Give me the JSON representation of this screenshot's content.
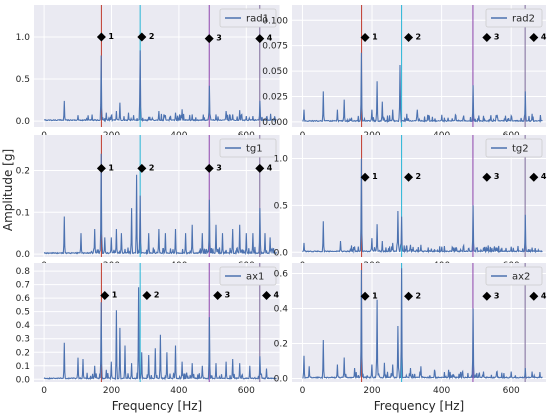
{
  "figure": {
    "ylabel": "Amplitude [g]",
    "xlabel": "Frequency [Hz]"
  },
  "colors": {
    "panel_bg": "#eaeaf2",
    "grid": "#ffffff",
    "signal": "#4c72b0",
    "marker": "#000000",
    "line1": "#c0392b",
    "line2": "#26b5d6",
    "line3": "#8e44ad",
    "line4": "#7d6a9a"
  },
  "chart_data": [
    {
      "type": "line",
      "legend": "rad1",
      "legend_placement": "top-right",
      "xlim": [
        -30,
        700
      ],
      "ylim": [
        -0.07,
        1.38
      ],
      "xticks": [
        0,
        200,
        400,
        600,
        700
      ],
      "xtick_labels": [
        "0",
        "200",
        "400",
        "600",
        ""
      ],
      "yticks": [
        0,
        0.5,
        1.0
      ],
      "ytick_labels": [
        "0.0",
        "0.5",
        "1.0"
      ],
      "xlabel": "",
      "markers": [
        {
          "label": "1",
          "x": 170,
          "y": 1.0
        },
        {
          "label": "2",
          "x": 290,
          "y": 1.0
        },
        {
          "label": "3",
          "x": 490,
          "y": 0.98
        },
        {
          "label": "4",
          "x": 640,
          "y": 0.98
        }
      ],
      "peaks": [
        [
          60,
          0.24
        ],
        [
          100,
          0.07
        ],
        [
          170,
          0.78
        ],
        [
          185,
          0.1
        ],
        [
          200,
          0.05
        ],
        [
          215,
          0.12
        ],
        [
          225,
          0.22
        ],
        [
          250,
          0.1
        ],
        [
          265,
          0.07
        ],
        [
          285,
          0.84
        ],
        [
          310,
          0.05
        ],
        [
          340,
          0.12
        ],
        [
          360,
          0.07
        ],
        [
          390,
          0.1
        ],
        [
          410,
          0.14
        ],
        [
          440,
          0.08
        ],
        [
          490,
          0.42
        ],
        [
          510,
          0.08
        ],
        [
          540,
          0.12
        ],
        [
          560,
          0.08
        ],
        [
          580,
          0.13
        ],
        [
          600,
          0.06
        ],
        [
          620,
          0.06
        ],
        [
          640,
          0.24
        ],
        [
          660,
          0.05
        ]
      ]
    },
    {
      "type": "line",
      "legend": "rad2",
      "legend_placement": "top-right",
      "xlim": [
        -30,
        700
      ],
      "ylim": [
        -0.005,
        0.115
      ],
      "xticks": [
        0,
        200,
        400,
        600
      ],
      "xtick_labels": [
        "0",
        "200",
        "400",
        "600"
      ],
      "yticks": [
        0.0,
        0.025,
        0.05,
        0.075,
        0.1
      ],
      "ytick_labels": [
        "0.000",
        "0.025",
        "0.050",
        "0.075",
        "0.100"
      ],
      "xlabel": "",
      "markers": [
        {
          "label": "1",
          "x": 180,
          "y": 0.083
        },
        {
          "label": "2",
          "x": 305,
          "y": 0.083
        },
        {
          "label": "3",
          "x": 530,
          "y": 0.083
        },
        {
          "label": "4",
          "x": 665,
          "y": 0.083
        }
      ],
      "peaks": [
        [
          5,
          0.012
        ],
        [
          60,
          0.03
        ],
        [
          100,
          0.012
        ],
        [
          120,
          0.022
        ],
        [
          170,
          0.068
        ],
        [
          200,
          0.012
        ],
        [
          215,
          0.04
        ],
        [
          230,
          0.02
        ],
        [
          260,
          0.012
        ],
        [
          280,
          0.056
        ],
        [
          300,
          0.008
        ],
        [
          330,
          0.012
        ],
        [
          360,
          0.007
        ],
        [
          400,
          0.007
        ],
        [
          440,
          0.007
        ],
        [
          490,
          0.036
        ],
        [
          520,
          0.006
        ],
        [
          560,
          0.007
        ],
        [
          600,
          0.006
        ],
        [
          640,
          0.03
        ],
        [
          660,
          0.008
        ]
      ]
    },
    {
      "type": "line",
      "legend": "tg1",
      "legend_placement": "top-right",
      "xlim": [
        -30,
        700
      ],
      "ylim": [
        -0.007,
        0.285
      ],
      "xticks": [
        0,
        200,
        400,
        600,
        700
      ],
      "xtick_labels": [
        "0",
        "200",
        "400",
        "600",
        ""
      ],
      "yticks": [
        0,
        0.1,
        0.2
      ],
      "ytick_labels": [
        "0.0",
        "0.1",
        "0.2"
      ],
      "xlabel": "",
      "markers": [
        {
          "label": "1",
          "x": 170,
          "y": 0.205
        },
        {
          "label": "2",
          "x": 290,
          "y": 0.205
        },
        {
          "label": "3",
          "x": 490,
          "y": 0.205
        },
        {
          "label": "4",
          "x": 640,
          "y": 0.205
        }
      ],
      "peaks": [
        [
          60,
          0.09
        ],
        [
          110,
          0.05
        ],
        [
          150,
          0.06
        ],
        [
          170,
          0.24
        ],
        [
          180,
          0.04
        ],
        [
          200,
          0.04
        ],
        [
          215,
          0.06
        ],
        [
          230,
          0.05
        ],
        [
          260,
          0.11
        ],
        [
          275,
          0.19
        ],
        [
          285,
          0.14
        ],
        [
          310,
          0.05
        ],
        [
          340,
          0.06
        ],
        [
          360,
          0.05
        ],
        [
          390,
          0.06
        ],
        [
          420,
          0.05
        ],
        [
          440,
          0.07
        ],
        [
          470,
          0.05
        ],
        [
          490,
          0.13
        ],
        [
          510,
          0.07
        ],
        [
          530,
          0.05
        ],
        [
          560,
          0.06
        ],
        [
          580,
          0.07
        ],
        [
          600,
          0.05
        ],
        [
          620,
          0.05
        ],
        [
          640,
          0.11
        ],
        [
          655,
          0.05
        ],
        [
          670,
          0.04
        ]
      ]
    },
    {
      "type": "line",
      "legend": "tg2",
      "legend_placement": "top-right",
      "xlim": [
        -30,
        700
      ],
      "ylim": [
        -0.05,
        1.25
      ],
      "xticks": [
        0,
        200,
        400,
        600
      ],
      "xtick_labels": [
        "0",
        "200",
        "400",
        "600"
      ],
      "yticks": [
        0,
        0.5,
        1.0
      ],
      "ytick_labels": [
        "0.0",
        "0.5",
        "1.0"
      ],
      "xlabel": "",
      "markers": [
        {
          "label": "1",
          "x": 180,
          "y": 0.8
        },
        {
          "label": "2",
          "x": 305,
          "y": 0.8
        },
        {
          "label": "3",
          "x": 530,
          "y": 0.8
        },
        {
          "label": "4",
          "x": 665,
          "y": 0.8
        }
      ],
      "peaks": [
        [
          5,
          0.1
        ],
        [
          60,
          0.33
        ],
        [
          110,
          0.12
        ],
        [
          170,
          1.0
        ],
        [
          200,
          0.15
        ],
        [
          215,
          0.3
        ],
        [
          230,
          0.12
        ],
        [
          260,
          0.1
        ],
        [
          275,
          0.44
        ],
        [
          285,
          0.38
        ],
        [
          310,
          0.08
        ],
        [
          340,
          0.08
        ],
        [
          400,
          0.06
        ],
        [
          440,
          0.05
        ],
        [
          490,
          0.5
        ],
        [
          520,
          0.05
        ],
        [
          560,
          0.05
        ],
        [
          600,
          0.06
        ],
        [
          640,
          0.4
        ],
        [
          660,
          0.05
        ]
      ]
    },
    {
      "type": "line",
      "legend": "ax1",
      "legend_placement": "top-right",
      "xlim": [
        -30,
        700
      ],
      "ylim": [
        -0.02,
        0.86
      ],
      "xticks": [
        0,
        200,
        400,
        600,
        700
      ],
      "xtick_labels": [
        "0",
        "200",
        "400",
        "600",
        ""
      ],
      "yticks": [
        0,
        0.1,
        0.2,
        0.3,
        0.4,
        0.5,
        0.6,
        0.7,
        0.8
      ],
      "ytick_labels": [
        "0.0",
        "0.1",
        "0.2",
        "0.3",
        "0.4",
        "0.5",
        "0.6",
        "0.7",
        "0.8"
      ],
      "xlabel": "Frequency [Hz]",
      "markers": [
        {
          "label": "1",
          "x": 180,
          "y": 0.62
        },
        {
          "label": "2",
          "x": 305,
          "y": 0.62
        },
        {
          "label": "3",
          "x": 515,
          "y": 0.62
        },
        {
          "label": "4",
          "x": 660,
          "y": 0.62
        }
      ],
      "peaks": [
        [
          60,
          0.27
        ],
        [
          100,
          0.16
        ],
        [
          115,
          0.15
        ],
        [
          150,
          0.1
        ],
        [
          170,
          0.57
        ],
        [
          185,
          0.07
        ],
        [
          200,
          0.13
        ],
        [
          215,
          0.51
        ],
        [
          225,
          0.38
        ],
        [
          240,
          0.25
        ],
        [
          260,
          0.12
        ],
        [
          280,
          0.68
        ],
        [
          290,
          0.2
        ],
        [
          310,
          0.18
        ],
        [
          330,
          0.23
        ],
        [
          345,
          0.33
        ],
        [
          365,
          0.2
        ],
        [
          390,
          0.25
        ],
        [
          410,
          0.13
        ],
        [
          440,
          0.12
        ],
        [
          470,
          0.1
        ],
        [
          490,
          0.46
        ],
        [
          510,
          0.12
        ],
        [
          540,
          0.13
        ],
        [
          560,
          0.15
        ],
        [
          580,
          0.12
        ],
        [
          610,
          0.1
        ],
        [
          640,
          0.17
        ],
        [
          660,
          0.08
        ]
      ]
    },
    {
      "type": "line",
      "legend": "ax2",
      "legend_placement": "top-right",
      "xlim": [
        -30,
        700
      ],
      "ylim": [
        -0.02,
        0.66
      ],
      "xticks": [
        0,
        200,
        400,
        600
      ],
      "xtick_labels": [
        "0",
        "200",
        "400",
        "600"
      ],
      "yticks": [
        0.0,
        0.2,
        0.4,
        0.6
      ],
      "ytick_labels": [
        "0.0",
        "0.2",
        "0.4",
        "0.6"
      ],
      "xlabel": "Frequency [Hz]",
      "markers": [
        {
          "label": "1",
          "x": 180,
          "y": 0.47
        },
        {
          "label": "2",
          "x": 305,
          "y": 0.47
        },
        {
          "label": "3",
          "x": 530,
          "y": 0.47
        },
        {
          "label": "4",
          "x": 665,
          "y": 0.47
        }
      ],
      "peaks": [
        [
          5,
          0.13
        ],
        [
          20,
          0.07
        ],
        [
          60,
          0.22
        ],
        [
          100,
          0.08
        ],
        [
          120,
          0.12
        ],
        [
          150,
          0.06
        ],
        [
          170,
          0.62
        ],
        [
          200,
          0.08
        ],
        [
          215,
          0.45
        ],
        [
          235,
          0.09
        ],
        [
          260,
          0.08
        ],
        [
          275,
          0.3
        ],
        [
          285,
          0.63
        ],
        [
          310,
          0.06
        ],
        [
          340,
          0.07
        ],
        [
          380,
          0.05
        ],
        [
          420,
          0.05
        ],
        [
          460,
          0.04
        ],
        [
          490,
          0.4
        ],
        [
          520,
          0.04
        ],
        [
          560,
          0.04
        ],
        [
          600,
          0.04
        ],
        [
          640,
          0.06
        ],
        [
          660,
          0.04
        ]
      ]
    }
  ]
}
